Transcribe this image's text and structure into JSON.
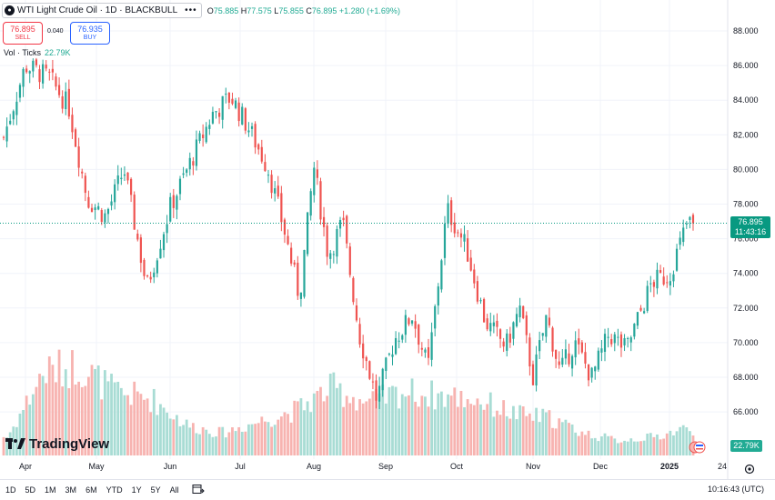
{
  "symbol": {
    "title": "WTI Light Crude Oil · 1D · BLACKBULL",
    "more": "•••",
    "ohlc": [
      {
        "k": "O",
        "v": "75.885"
      },
      {
        "k": "H",
        "v": "77.575"
      },
      {
        "k": "L",
        "v": "75.855"
      },
      {
        "k": "C",
        "v": "76.895 +1.280 (+1.69%)"
      }
    ]
  },
  "trade": {
    "sell_price": "76.895",
    "sell_label": "SELL",
    "spread": "0.040",
    "buy_price": "76.935",
    "buy_label": "BUY"
  },
  "volume_legend": {
    "label": "Vol · Ticks",
    "value": "22.79K"
  },
  "last_price": {
    "value": "76.895",
    "countdown": "11:43:16",
    "color": "#089981"
  },
  "volume_tag": "22.79K",
  "brand": "TradingView",
  "bottom_bar": {
    "ranges": [
      "1D",
      "5D",
      "1M",
      "3M",
      "6M",
      "YTD",
      "1Y",
      "5Y",
      "All"
    ],
    "clock": "10:16:43 (UTC)"
  },
  "colors": {
    "up": "#26a69a",
    "down": "#ef5350",
    "vol_up": "#a8dcd4",
    "vol_down": "#f7b3b0"
  },
  "icons": [
    "symbol-logo-icon",
    "more-icon",
    "goto-date-icon",
    "settings-icon",
    "flag-icon",
    "tradingview-logo-icon"
  ],
  "chart_data": {
    "type": "candlestick",
    "title": "WTI Light Crude Oil · 1D · BLACKBULL",
    "ylim": [
      64,
      89
    ],
    "y_ticks": [
      "88.000",
      "86.000",
      "84.000",
      "82.000",
      "80.000",
      "78.000",
      "76.000",
      "74.000",
      "72.000",
      "70.000",
      "68.000",
      "66.000"
    ],
    "x_ticks": [
      "Apr",
      "May",
      "Jun",
      "Jul",
      "Aug",
      "Sep",
      "Oct",
      "Nov",
      "Dec",
      "2025",
      "24"
    ],
    "close_path": [
      {
        "x": "Apr",
        "y": 81.5
      },
      {
        "x": "Apr",
        "y": 86.0
      },
      {
        "x": "Apr",
        "y": 85.3
      },
      {
        "x": "May",
        "y": 83.6
      },
      {
        "x": "May",
        "y": 78.3
      },
      {
        "x": "May",
        "y": 77.3
      },
      {
        "x": "May",
        "y": 80.0
      },
      {
        "x": "Jun",
        "y": 73.2
      },
      {
        "x": "Jun",
        "y": 77.8
      },
      {
        "x": "Jun",
        "y": 80.8
      },
      {
        "x": "Jul",
        "y": 83.2
      },
      {
        "x": "Jul",
        "y": 84.2
      },
      {
        "x": "Jul",
        "y": 82.3
      },
      {
        "x": "Jul",
        "y": 80.1
      },
      {
        "x": "Aug",
        "y": 76.3
      },
      {
        "x": "Aug",
        "y": 72.6
      },
      {
        "x": "Aug",
        "y": 80.2
      },
      {
        "x": "Aug",
        "y": 75.0
      },
      {
        "x": "Aug",
        "y": 77.0
      },
      {
        "x": "Sep",
        "y": 70.5
      },
      {
        "x": "Sep",
        "y": 66.7
      },
      {
        "x": "Sep",
        "y": 70.2
      },
      {
        "x": "Sep",
        "y": 71.6
      },
      {
        "x": "Oct",
        "y": 68.5
      },
      {
        "x": "Oct",
        "y": 77.7
      },
      {
        "x": "Oct",
        "y": 75.5
      },
      {
        "x": "Oct",
        "y": 71.2
      },
      {
        "x": "Nov",
        "y": 69.8
      },
      {
        "x": "Nov",
        "y": 72.0
      },
      {
        "x": "Nov",
        "y": 68.0
      },
      {
        "x": "Nov",
        "y": 71.5
      },
      {
        "x": "Nov",
        "y": 68.3
      },
      {
        "x": "Dec",
        "y": 70.0
      },
      {
        "x": "Dec",
        "y": 68.0
      },
      {
        "x": "Dec",
        "y": 70.5
      },
      {
        "x": "Dec",
        "y": 69.6
      },
      {
        "x": "2025",
        "y": 73.5
      },
      {
        "x": "2025",
        "y": 73.9
      },
      {
        "x": "2025",
        "y": 76.895
      }
    ],
    "volume_profile": [
      {
        "x": "Apr",
        "v": 5
      },
      {
        "x": "Apr",
        "v": 22
      },
      {
        "x": "May",
        "v": 24
      },
      {
        "x": "May",
        "v": 17
      },
      {
        "x": "Jun",
        "v": 15
      },
      {
        "x": "Jun",
        "v": 8
      },
      {
        "x": "Jul",
        "v": 6
      },
      {
        "x": "Jul",
        "v": 9
      },
      {
        "x": "Aug",
        "v": 12
      },
      {
        "x": "Aug",
        "v": 18
      },
      {
        "x": "Sep",
        "v": 14
      },
      {
        "x": "Sep",
        "v": 17
      },
      {
        "x": "Oct",
        "v": 16
      },
      {
        "x": "Oct",
        "v": 15
      },
      {
        "x": "Nov",
        "v": 11
      },
      {
        "x": "Nov",
        "v": 10
      },
      {
        "x": "Dec",
        "v": 6
      },
      {
        "x": "Dec",
        "v": 4
      },
      {
        "x": "2025",
        "v": 5
      },
      {
        "x": "2025",
        "v": 7
      }
    ],
    "volume_ylim": [
      0,
      30
    ],
    "last_price": 76.895,
    "grid": true
  }
}
